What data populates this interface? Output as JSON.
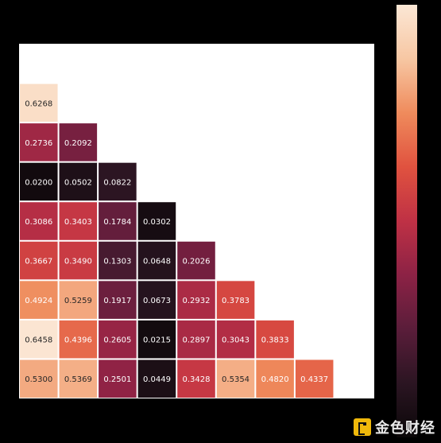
{
  "chart_data": {
    "type": "heatmap",
    "title": "",
    "xlabel": "",
    "ylabel": "",
    "layout": "lower-triangle",
    "rows": [
      [],
      [
        0.6268
      ],
      [
        0.2736,
        0.2092
      ],
      [
        0.02,
        0.0502,
        0.0822
      ],
      [
        0.3086,
        0.3403,
        0.1784,
        0.0302
      ],
      [
        0.3667,
        0.349,
        0.1303,
        0.0648,
        0.2026
      ],
      [
        0.4924,
        0.5259,
        0.1917,
        0.0673,
        0.2932,
        0.3783
      ],
      [
        0.6458,
        0.4396,
        0.2605,
        0.0215,
        0.2897,
        0.3043,
        0.3833
      ],
      [
        0.53,
        0.5369,
        0.2501,
        0.0449,
        0.3428,
        0.5354,
        0.482,
        0.4337
      ]
    ],
    "labels": [
      [],
      [
        "0.6268"
      ],
      [
        "0.2736",
        "0.2092"
      ],
      [
        "0.0200",
        "0.0502",
        "0.0822"
      ],
      [
        "0.3086",
        "0.3403",
        "0.1784",
        "0.0302"
      ],
      [
        "0.3667",
        "0.3490",
        "0.1303",
        "0.0648",
        "0.2026"
      ],
      [
        "0.4924",
        "0.5259",
        "0.1917",
        "0.0673",
        "0.2932",
        "0.3783"
      ],
      [
        "0.6458",
        "0.4396",
        "0.2605",
        "0.0215",
        "0.2897",
        "0.3043",
        "0.3833"
      ],
      [
        "0.5300",
        "0.5369",
        "0.2501",
        "0.0449",
        "0.3428",
        "0.5354",
        "0.4820",
        "0.4337"
      ]
    ],
    "color_range": [
      0.0,
      0.65
    ],
    "colormap": [
      "#0a0708",
      "#2b1522",
      "#5a1d3a",
      "#8c2245",
      "#bf3145",
      "#e0523f",
      "#ef8b5c",
      "#f7c7a3",
      "#fbe7d5"
    ],
    "colorbar": true,
    "grid": false,
    "legend": "none"
  },
  "watermark": {
    "text": "金色财经",
    "logo_icon": "exchange-logo-icon"
  }
}
